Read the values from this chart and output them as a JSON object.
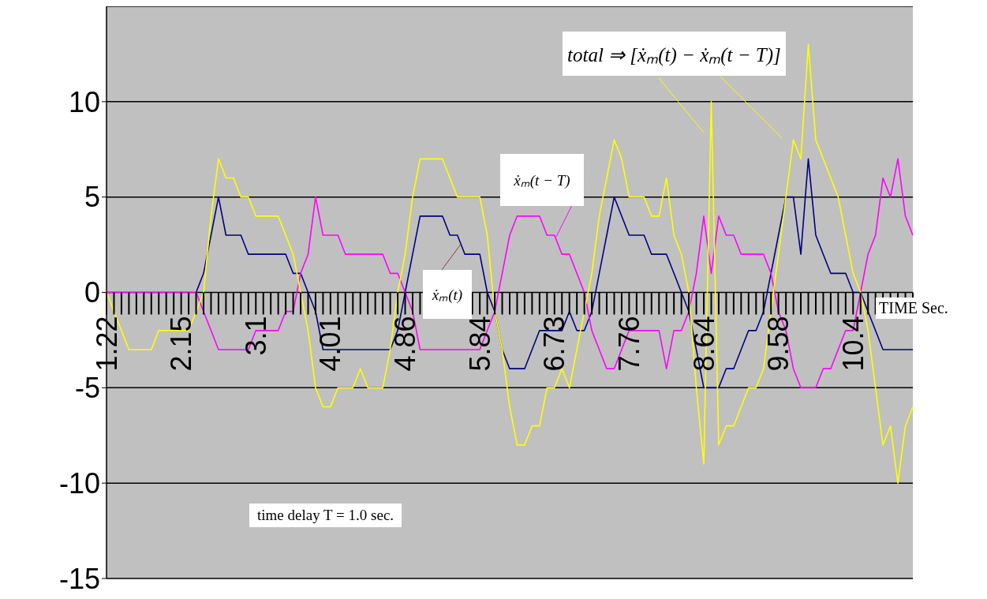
{
  "chart_data": {
    "type": "line",
    "xlabel": "TIME Sec.",
    "annotations": [
      "time delay T = 1.0 sec."
    ],
    "categories": [
      "1.22",
      null,
      null,
      null,
      null,
      null,
      null,
      null,
      null,
      null,
      "2.15",
      null,
      null,
      null,
      null,
      null,
      null,
      null,
      null,
      null,
      "3.1",
      null,
      null,
      null,
      null,
      null,
      null,
      null,
      null,
      null,
      "4.01",
      null,
      null,
      null,
      null,
      null,
      null,
      null,
      null,
      null,
      "4.86",
      null,
      null,
      null,
      null,
      null,
      null,
      null,
      null,
      null,
      "5.84",
      null,
      null,
      null,
      null,
      null,
      null,
      null,
      null,
      null,
      "6.73",
      null,
      null,
      null,
      null,
      null,
      null,
      null,
      null,
      null,
      "7.76",
      null,
      null,
      null,
      null,
      null,
      null,
      null,
      null,
      null,
      "8.64",
      null,
      null,
      null,
      null,
      null,
      null,
      null,
      null,
      null,
      "9.58",
      null,
      null,
      null,
      null,
      null,
      null,
      null,
      null,
      null,
      "10.4",
      null,
      null,
      null,
      null,
      null,
      null,
      null,
      null
    ],
    "series": [
      {
        "name": "ẋₘ(t)",
        "color": "#000080",
        "values": [
          null,
          null,
          null,
          null,
          null,
          null,
          null,
          null,
          null,
          null,
          null,
          null,
          0,
          1,
          3,
          5,
          3,
          3,
          3,
          2,
          2,
          2,
          2,
          2,
          2,
          1,
          1,
          0,
          -1,
          -3,
          -3,
          -3,
          -3,
          -3,
          -3,
          -3,
          -3,
          -3,
          -3,
          -2,
          0,
          2,
          4,
          4,
          4,
          4,
          3,
          3,
          2,
          2,
          2,
          0,
          -1,
          -3,
          -4,
          -4,
          -4,
          -3,
          -2,
          -2,
          -2,
          -2,
          -1,
          -2,
          -2,
          -1,
          1,
          3,
          5,
          4,
          3,
          3,
          3,
          2,
          2,
          2,
          1,
          0,
          -1,
          -3,
          -5,
          -5,
          -5,
          -4,
          -4,
          -3,
          -2,
          -2,
          -1,
          1,
          3,
          5,
          5,
          2,
          7,
          3,
          2,
          1,
          1,
          1,
          0,
          0,
          -1,
          -2,
          -3,
          -3,
          -3,
          -3,
          -3
        ]
      },
      {
        "name": "ẋₘ(t − T)",
        "color": "#ff00ff",
        "values": [
          0,
          0,
          0,
          0,
          0,
          0,
          0,
          0,
          0,
          0,
          0,
          0,
          0,
          -1,
          -2,
          -3,
          -3,
          -3,
          -3,
          -3,
          -2,
          -2,
          -2,
          -2,
          -1,
          -1,
          1,
          2,
          5,
          3,
          3,
          3,
          2,
          2,
          2,
          2,
          2,
          2,
          1,
          1,
          0,
          -1,
          -3,
          -3,
          -3,
          -3,
          -3,
          -3,
          -3,
          -3,
          -3,
          -2,
          -1,
          1,
          3,
          4,
          4,
          4,
          4,
          3,
          3,
          2,
          2,
          1,
          0,
          -2,
          -3,
          -4,
          -4,
          -3,
          -2,
          -2,
          -2,
          -2,
          -2,
          -4,
          -2,
          -2,
          -1,
          1,
          4,
          1,
          4,
          3,
          3,
          2,
          2,
          2,
          2,
          1,
          -1,
          -2,
          -4,
          -5,
          -5,
          -5,
          -4,
          -4,
          -3,
          -2,
          -2,
          0,
          2,
          3,
          6,
          5,
          7,
          4,
          3
        ]
      },
      {
        "name": "total ⇒ [ẋₘ(t) − ẋₘ(t − T)]",
        "color": "#ffff00",
        "values": [
          0,
          -1,
          -2,
          -3,
          -3,
          -3,
          -3,
          -2,
          -2,
          -2,
          -2,
          -2,
          -1,
          0,
          4,
          7,
          6,
          6,
          5,
          5,
          4,
          4,
          4,
          4,
          3,
          2,
          0,
          -2,
          -5,
          -6,
          -6,
          -5,
          -5,
          -5,
          -4,
          -5,
          -5,
          -5,
          -3,
          0,
          2,
          5,
          7,
          7,
          7,
          7,
          6,
          5,
          5,
          5,
          5,
          3,
          -1,
          -3,
          -6,
          -8,
          -8,
          -7,
          -7,
          -5,
          -5,
          -4,
          -5,
          -3,
          -1,
          1,
          4,
          6,
          8,
          7,
          5,
          5,
          5,
          4,
          4,
          6,
          3,
          2,
          0,
          -5,
          -9,
          10,
          -8,
          -7,
          -7,
          -6,
          -5,
          -5,
          -4,
          -1,
          2,
          5,
          8,
          7,
          13,
          8,
          7,
          6,
          5,
          3,
          1,
          0,
          -2,
          -5,
          -8,
          -7,
          -10,
          -7,
          -6
        ]
      }
    ],
    "ylim": [
      -15,
      15
    ],
    "yticks": [
      -15,
      -10,
      -5,
      0,
      5,
      10
    ],
    "grid": "y"
  }
}
